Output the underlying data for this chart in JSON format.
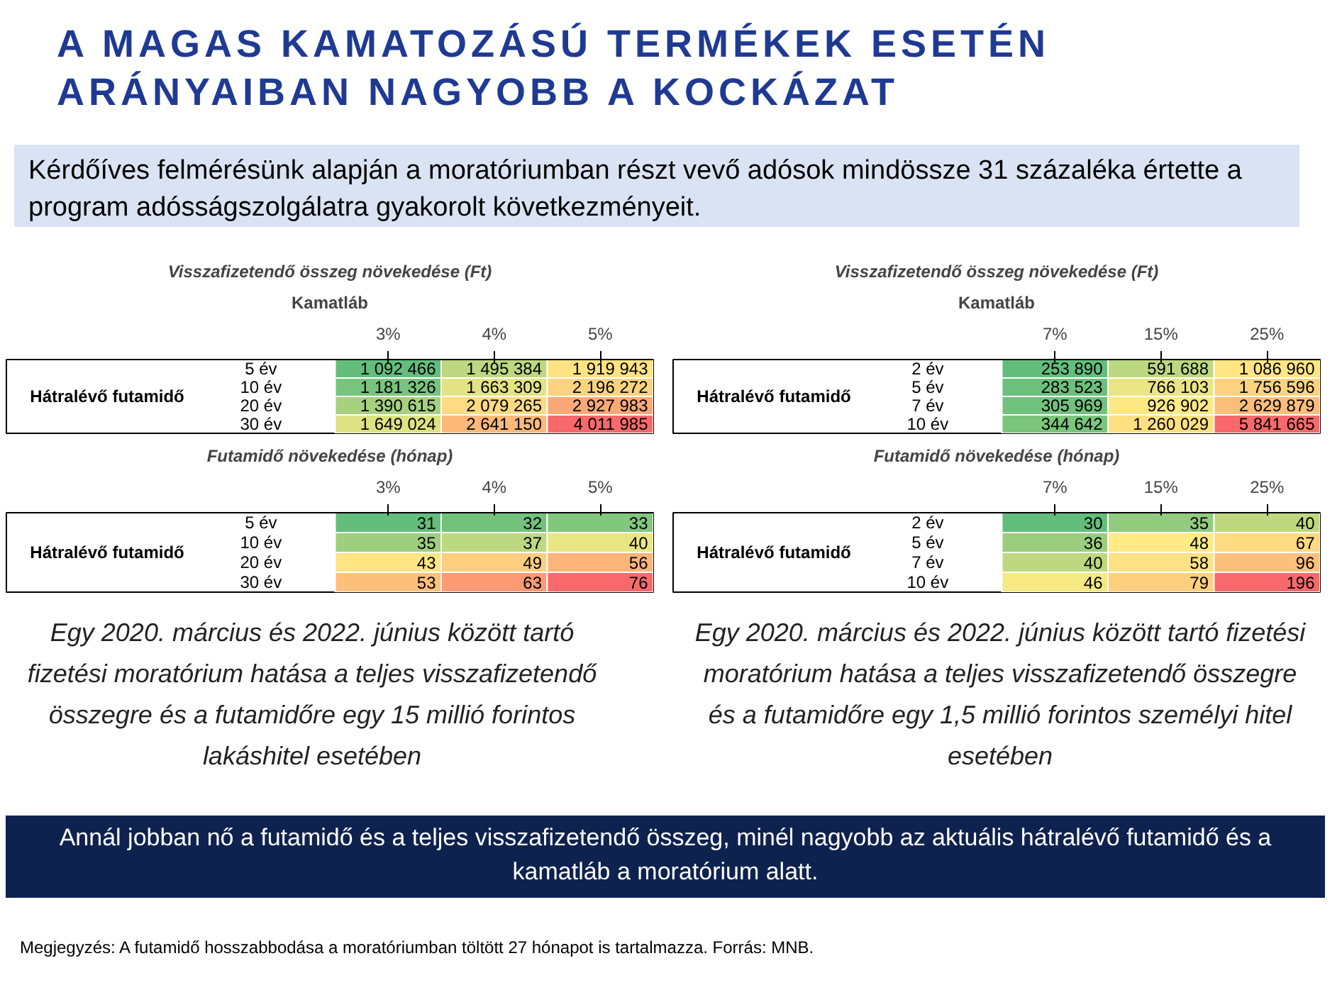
{
  "chart_data": [
    {
      "type": "heatmap",
      "title": "Visszafizetendő összeg növekedése (Ft)",
      "xlabel": "Kamatláb",
      "ylabel": "Hátralévő futamidő",
      "categories": [
        "3%",
        "4%",
        "5%"
      ],
      "y_categories": [
        "5 év",
        "10 év",
        "20 év",
        "30 év"
      ],
      "cells": [
        [
          1092466,
          1495384,
          1919943
        ],
        [
          1181326,
          1663309,
          2196272
        ],
        [
          1390615,
          2079265,
          2927983
        ],
        [
          1649024,
          2641150,
          4011985
        ]
      ],
      "cell_labels": [
        [
          "1 092 466",
          "1 495 384",
          "1 919 943"
        ],
        [
          "1 181 326",
          "1 663 309",
          "2 196 272"
        ],
        [
          "1 390 615",
          "2 079 265",
          "2 927 983"
        ],
        [
          "1 649 024",
          "2 641 150",
          "4 011 985"
        ]
      ],
      "annotations": [
        "A MAGAS KAMATOZÁSÚ TERMÉKEK ESETÉN ARÁNYAIBAN NAGYOBB A KOCKÁZAT",
        "Kérdőíves felmérésünk alapján a moratóriumban részt vevő adósok mindössze 31 százaléka értette a program adósságszolgálatra gyakorolt következményeit.",
        "Egy 2020. március és 2022. június között tartó fizetési moratórium hatása a teljes visszafizetendő összegre és a futamidőre egy 15 millió forintos lakáshitel esetében",
        "Annál jobban nő a futamidő és a teljes visszafizetendő összeg, minél nagyobb az aktuális hátralévő futamidő és a kamatláb a moratórium alatt.",
        "Megjegyzés: A futamidő hosszabbodása a moratóriumban töltött 27 hónapot is tartalmazza. Forrás: MNB."
      ]
    },
    {
      "type": "heatmap",
      "title": "Futamidő növekedése (hónap)",
      "ylabel": "Hátralévő futamidő",
      "categories": [
        "3%",
        "4%",
        "5%"
      ],
      "y_categories": [
        "5 év",
        "10 év",
        "20 év",
        "30 év"
      ],
      "data_labels": true,
      "cells": [
        [
          31,
          32,
          33
        ],
        [
          35,
          37,
          40
        ],
        [
          43,
          49,
          56
        ],
        [
          53,
          63,
          76
        ]
      ]
    },
    {
      "type": "heatmap",
      "title": "Visszafizetendő összeg növekedése (Ft)",
      "xlabel": "Kamatláb",
      "ylabel": "Hátralévő futamidő",
      "categories": [
        "7%",
        "15%",
        "25%"
      ],
      "y_categories": [
        "2 év",
        "5 év",
        "7 év",
        "10 év"
      ],
      "cells": [
        [
          253890,
          591688,
          1086960
        ],
        [
          283523,
          766103,
          1756596
        ],
        [
          305969,
          926902,
          2629879
        ],
        [
          344642,
          1260029,
          5841665
        ]
      ],
      "cell_labels": [
        [
          "253 890",
          "591 688",
          "1 086 960"
        ],
        [
          "283 523",
          "766 103",
          "1 756 596"
        ],
        [
          "305 969",
          "926 902",
          "2 629 879"
        ],
        [
          "344 642",
          "1 260 029",
          "5 841 665"
        ]
      ],
      "annotations": [
        "Egy 2020. március és 2022. június között tartó fizetési moratórium hatása a teljes visszafizetendő összegre és a futamidőre egy 1,5 millió forintos személyi hitel esetében"
      ]
    },
    {
      "type": "heatmap",
      "title": "Futamidő növekedése (hónap)",
      "ylabel": "Hátralévő futamidő",
      "categories": [
        "7%",
        "15%",
        "25%"
      ],
      "y_categories": [
        "2 év",
        "5 év",
        "7 év",
        "10 év"
      ],
      "data_labels": true,
      "cells": [
        [
          30,
          35,
          40
        ],
        [
          36,
          48,
          67
        ],
        [
          40,
          58,
          96
        ],
        [
          46,
          79,
          196
        ]
      ]
    }
  ]
}
